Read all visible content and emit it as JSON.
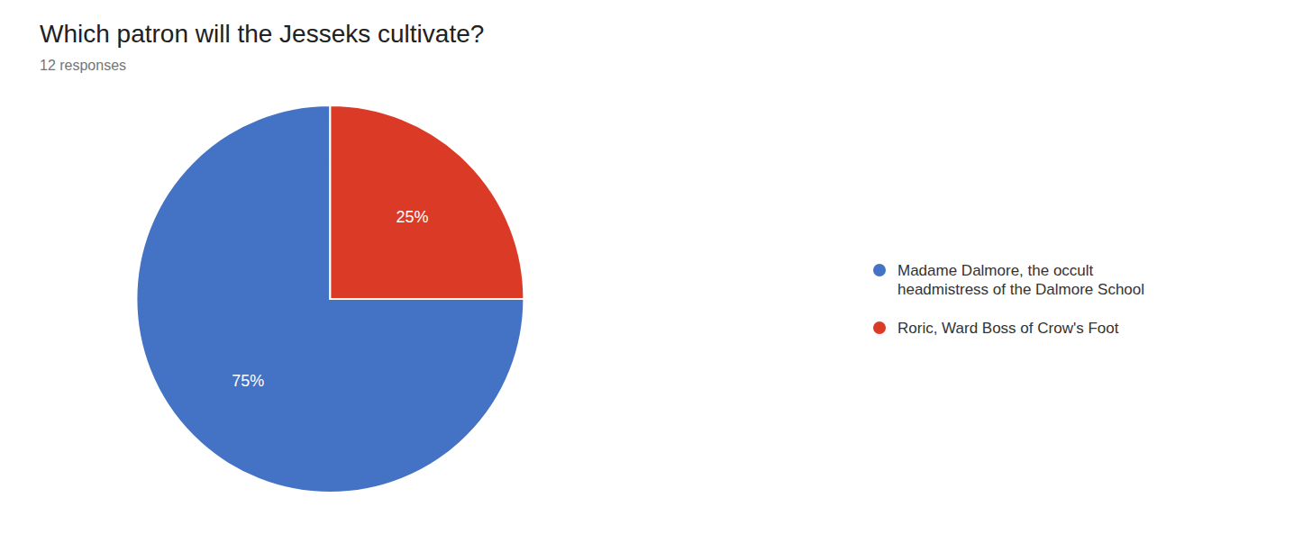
{
  "chart_data": {
    "type": "pie",
    "title": "Which patron will the Jesseks cultivate?",
    "subtitle": "12 responses",
    "categories": [
      "Madame Dalmore, the occult\nheadmistress of the Dalmore School",
      "Roric, Ward Boss of Crow's Foot"
    ],
    "values": [
      75,
      25
    ],
    "value_labels": [
      "75%",
      "25%"
    ],
    "colors": [
      "#4472C4",
      "#DB3B26"
    ],
    "data_labels": true,
    "legend": "right"
  }
}
